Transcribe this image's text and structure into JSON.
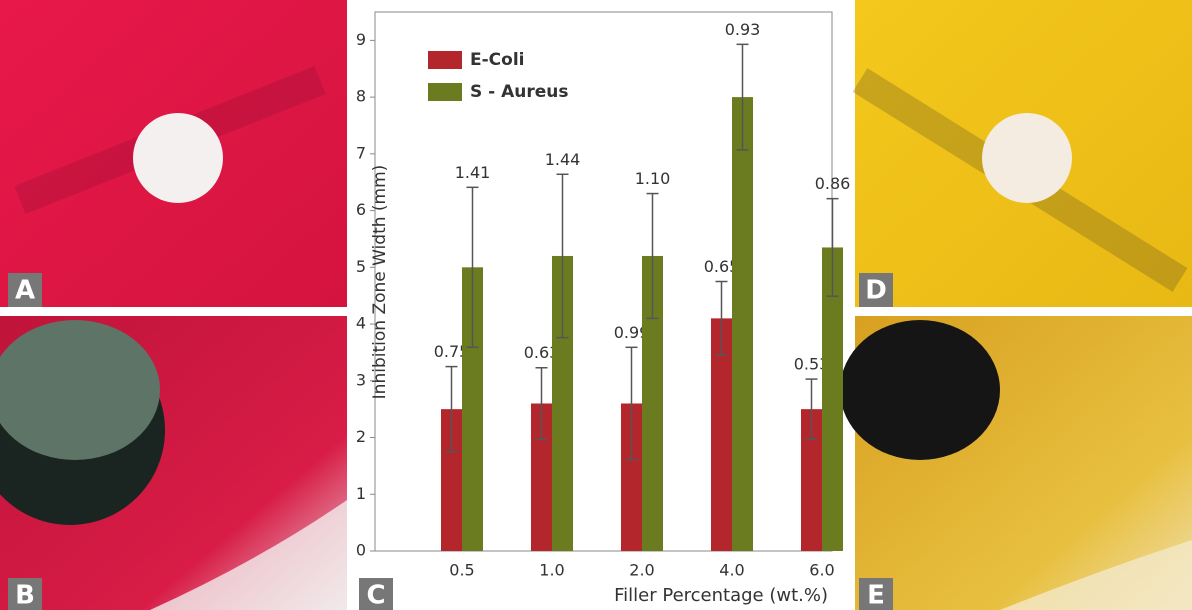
{
  "chart_data": {
    "type": "bar",
    "ylabel": "Inhibition Zone Width (mm)",
    "xlabel": "Filler Percentage (wt.%)",
    "categories": [
      "0.5",
      "1.0",
      "2.0",
      "4.0",
      "6.0"
    ],
    "series": [
      {
        "name": "E-Coli",
        "color": "#b3262c",
        "values": [
          2.5,
          2.6,
          2.6,
          4.1,
          2.5
        ],
        "errors": [
          0.75,
          0.63,
          0.99,
          0.65,
          0.53
        ],
        "error_labels": [
          "0.75",
          "0.63",
          "0.99",
          "0.65",
          "0.53"
        ]
      },
      {
        "name": "S - Aureus",
        "color": "#6b7b1f",
        "values": [
          5.0,
          5.2,
          5.2,
          8.0,
          5.35
        ],
        "errors": [
          1.41,
          1.44,
          1.1,
          0.93,
          0.86
        ],
        "error_labels": [
          "1.41",
          "1.44",
          "1.10",
          "0.93",
          "0.86"
        ]
      }
    ],
    "ylim": [
      0,
      9.5
    ],
    "yticks": [
      0,
      1,
      2,
      3,
      4,
      5,
      6,
      7,
      8,
      9
    ],
    "grid": false,
    "legend": "upper left"
  },
  "panel_labels": [
    "A",
    "B",
    "C",
    "D",
    "E"
  ]
}
